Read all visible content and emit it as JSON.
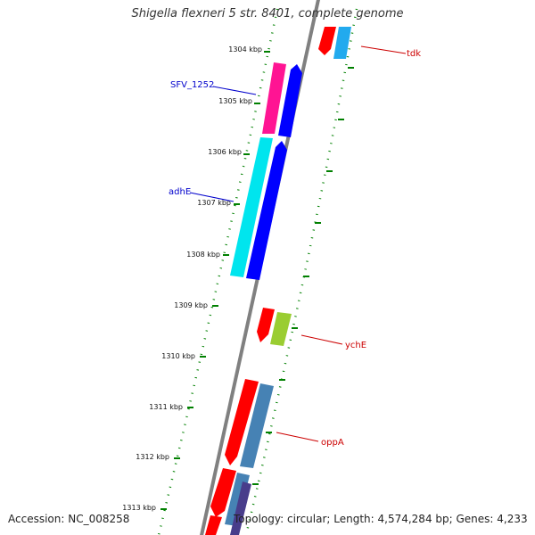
{
  "title": "Shigella flexneri 5 str. 8401, complete genome",
  "footer": {
    "accession": "Accession: NC_008258",
    "summary": "Topology: circular; Length: 4,574,284 bp; Genes: 4,233"
  },
  "colors": {
    "backbone": "#808080",
    "tick": "#008000",
    "red": "#ff0000",
    "magenta": "#ff1493",
    "blue": "#0000ff",
    "cyan": "#00e5ee",
    "lightblue": "#22aaee",
    "steelblue": "#4682b4",
    "yellowgreen": "#9acd32",
    "slate": "#483d8b",
    "label_red": "#cc0000",
    "label_blue": "#0000cc"
  },
  "ticks": [
    "1304 kbp",
    "1305 kbp",
    "1306 kbp",
    "1307 kbp",
    "1308 kbp",
    "1309 kbp",
    "1310 kbp",
    "1311 kbp",
    "1312 kbp",
    "1313 kbp"
  ],
  "gene_labels": [
    {
      "name": "tdk",
      "color": "label_red"
    },
    {
      "name": "SFV_1252",
      "color": "label_blue"
    },
    {
      "name": "adhE",
      "color": "label_blue"
    },
    {
      "name": "ychE",
      "color": "label_red"
    },
    {
      "name": "oppA",
      "color": "label_red"
    }
  ]
}
